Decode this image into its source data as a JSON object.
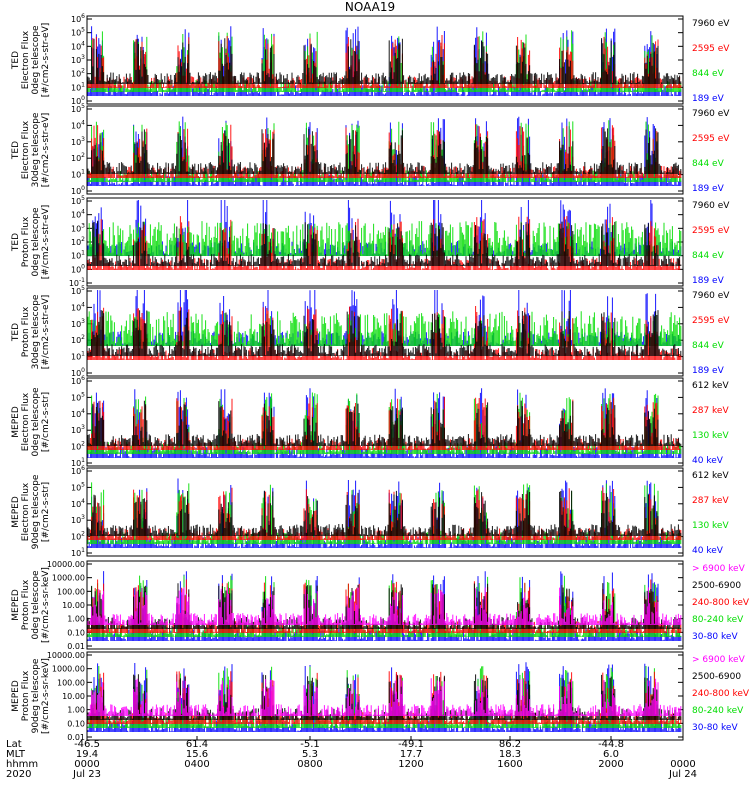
{
  "title": "NOAA19",
  "colors": {
    "black": "#000000",
    "red": "#ff0000",
    "green": "#00dd00",
    "blue": "#0000ff",
    "magenta": "#ff00ff"
  },
  "chart_data": [
    {
      "type": "line",
      "ylabel": [
        "TED",
        "Electron Flux",
        "0deg telescope",
        "[#/cm2-s-str-eV]"
      ],
      "yscale": "log",
      "ticks": [
        "10^0",
        "10^1",
        "10^2",
        "10^3",
        "10^4",
        "10^5",
        "10^6"
      ],
      "ylim": [
        1,
        1000000
      ],
      "legend": [
        {
          "name": "7960 eV",
          "color": "#000000"
        },
        {
          "name": "2595 eV",
          "color": "#ff0000"
        },
        {
          "name": "844 eV",
          "color": "#00dd00"
        },
        {
          "name": "189 eV",
          "color": "#0000ff"
        }
      ]
    },
    {
      "type": "line",
      "ylabel": [
        "TED",
        "Electron Flux",
        "30deg telescope",
        "[#/cm2-s-str-eV]"
      ],
      "yscale": "log",
      "ticks": [
        "10^0",
        "10^1",
        "10^2",
        "10^3",
        "10^4",
        "10^5"
      ],
      "ylim": [
        1,
        100000
      ],
      "legend": [
        {
          "name": "7960 eV",
          "color": "#000000"
        },
        {
          "name": "2595 eV",
          "color": "#ff0000"
        },
        {
          "name": "844 eV",
          "color": "#00dd00"
        },
        {
          "name": "189 eV",
          "color": "#0000ff"
        }
      ]
    },
    {
      "type": "line",
      "ylabel": [
        "TED",
        "Proton Flux",
        "0deg telescope",
        "[#/cm2-s-str-eV]"
      ],
      "yscale": "log",
      "ticks": [
        "10^-1",
        "10^0",
        "10^1",
        "10^2",
        "10^3",
        "10^4",
        "10^5"
      ],
      "ylim": [
        0.1,
        100000
      ],
      "legend": [
        {
          "name": "7960 eV",
          "color": "#000000"
        },
        {
          "name": "2595 eV",
          "color": "#ff0000"
        },
        {
          "name": "844 eV",
          "color": "#00dd00"
        },
        {
          "name": "189 eV",
          "color": "#0000ff"
        }
      ]
    },
    {
      "type": "line",
      "ylabel": [
        "TED",
        "Proton Flux",
        "30deg telescope",
        "[#/cm2-s-str-eV]"
      ],
      "yscale": "log",
      "ticks": [
        "10^0",
        "10^1",
        "10^2",
        "10^3",
        "10^4",
        "10^5"
      ],
      "ylim": [
        1,
        100000
      ],
      "legend": [
        {
          "name": "7960 eV",
          "color": "#000000"
        },
        {
          "name": "2595 eV",
          "color": "#ff0000"
        },
        {
          "name": "844 eV",
          "color": "#00dd00"
        },
        {
          "name": "189 eV",
          "color": "#0000ff"
        }
      ]
    },
    {
      "type": "line",
      "ylabel": [
        "MEPED",
        "Electron Flux",
        "0deg telescope",
        "[#/cm2-s-str]"
      ],
      "yscale": "log",
      "ticks": [
        "10^1",
        "10^2",
        "10^3",
        "10^4",
        "10^5",
        "10^6"
      ],
      "ylim": [
        10,
        1000000
      ],
      "legend": [
        {
          "name": "612 keV",
          "color": "#000000"
        },
        {
          "name": "287 keV",
          "color": "#ff0000"
        },
        {
          "name": "130 keV",
          "color": "#00dd00"
        },
        {
          "name": "40 keV",
          "color": "#0000ff"
        }
      ]
    },
    {
      "type": "line",
      "ylabel": [
        "MEPED",
        "Electron Flux",
        "90deg telescope",
        "[#/cm2-s-str]"
      ],
      "yscale": "log",
      "ticks": [
        "10^1",
        "10^2",
        "10^3",
        "10^4",
        "10^5",
        "10^6"
      ],
      "ylim": [
        10,
        1000000
      ],
      "legend": [
        {
          "name": "612 keV",
          "color": "#000000"
        },
        {
          "name": "287 keV",
          "color": "#ff0000"
        },
        {
          "name": "130 keV",
          "color": "#00dd00"
        },
        {
          "name": "40 keV",
          "color": "#0000ff"
        }
      ]
    },
    {
      "type": "line",
      "ylabel": [
        "MEPED",
        "Proton Flux",
        "0deg telescope",
        "[#/cm2-s-sr-keV]"
      ],
      "yscale": "log",
      "ticks": [
        "0.01",
        "0.10",
        "1.00",
        "10.00",
        "100.00",
        "1000.00",
        "10000.00"
      ],
      "ylim": [
        0.01,
        10000
      ],
      "legend": [
        {
          "name": "> 6900 keV",
          "color": "#ff00ff"
        },
        {
          "name": "2500-6900",
          "color": "#000000"
        },
        {
          "name": "240-800 keV",
          "color": "#ff0000"
        },
        {
          "name": "80-240 keV",
          "color": "#00dd00"
        },
        {
          "name": "30-80 keV",
          "color": "#0000ff"
        }
      ]
    },
    {
      "type": "line",
      "ylabel": [
        "MEPED",
        "Proton Flux",
        "90deg telescope",
        "[#/cm2-s-sr-keV]"
      ],
      "yscale": "log",
      "ticks": [
        "0.01",
        "0.10",
        "1.00",
        "10.00",
        "100.00",
        "1000.00",
        "10000.00"
      ],
      "ylim": [
        0.01,
        10000
      ],
      "legend": [
        {
          "name": "> 6900 keV",
          "color": "#ff00ff"
        },
        {
          "name": "2500-6900",
          "color": "#000000"
        },
        {
          "name": "240-800 keV",
          "color": "#ff0000"
        },
        {
          "name": "80-240 keV",
          "color": "#00dd00"
        },
        {
          "name": "30-80 keV",
          "color": "#0000ff"
        }
      ]
    }
  ],
  "x_axis": {
    "row_labels": [
      "Lat",
      "MLT",
      "hhmm",
      "2020"
    ],
    "columns": [
      [
        "-46.5",
        "19.4",
        "0000",
        "Jul 23"
      ],
      [
        "61.4",
        "15.6",
        "0400",
        ""
      ],
      [
        "-5.1",
        "5.3",
        "0800",
        ""
      ],
      [
        "-49.1",
        "17.7",
        "1200",
        ""
      ],
      [
        "86.2",
        "18.3",
        "1600",
        ""
      ],
      [
        "-44.8",
        "6.0",
        "2000",
        ""
      ],
      [
        "",
        "",
        "0000",
        "Jul 24"
      ]
    ]
  }
}
